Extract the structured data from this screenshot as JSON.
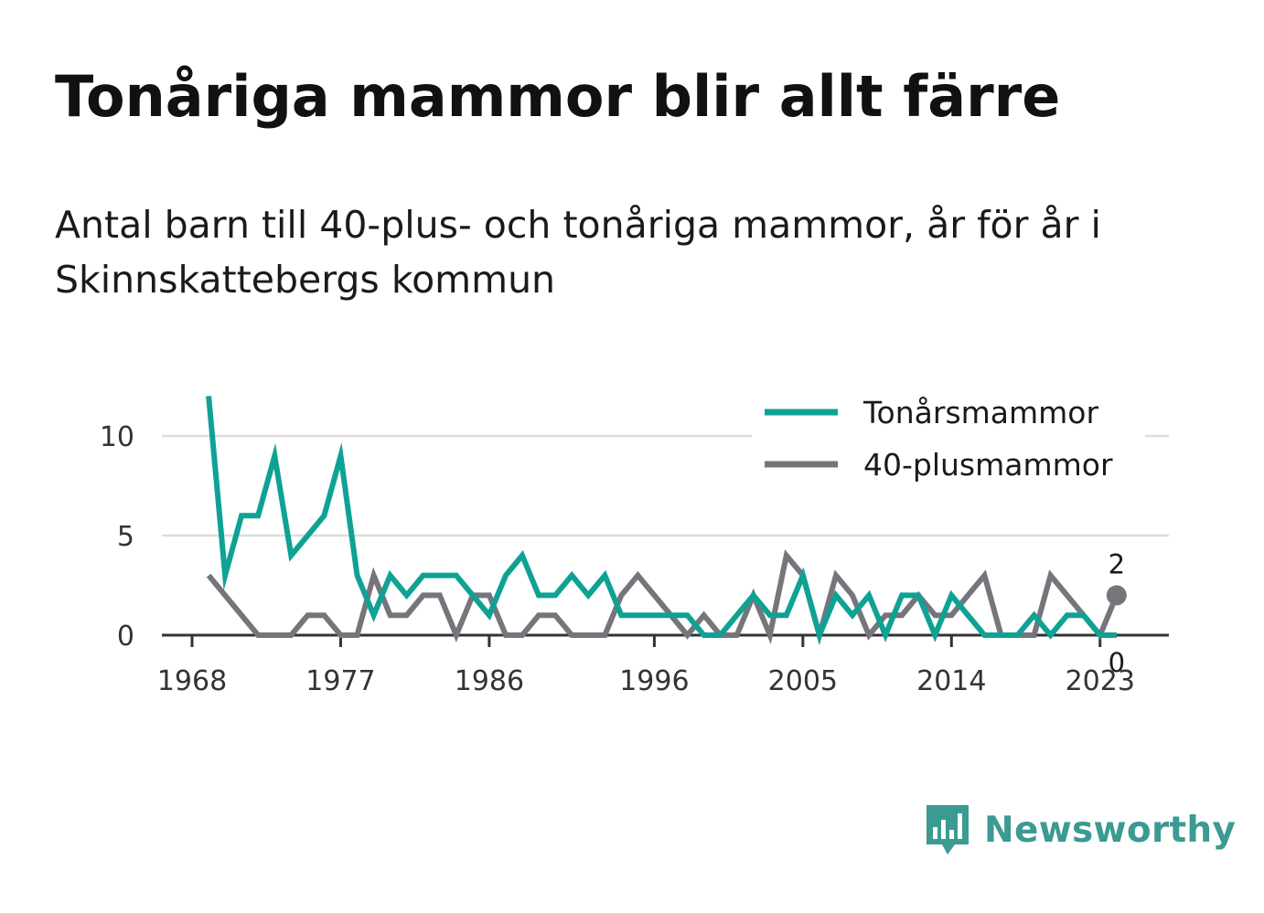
{
  "title": "Tonåriga mammor blir allt färre",
  "subtitle": "Antal barn till 40-plus- och tonåriga mammor, år för år i Skinnskattebergs kommun",
  "brand": {
    "name": "Newsworthy",
    "icon": "newsworthy-bar-chart-icon",
    "color": "#3b9a91"
  },
  "chart_data": {
    "type": "line",
    "x_ticks": [
      "1968",
      "1977",
      "1986",
      "1996",
      "2005",
      "2014",
      "2023"
    ],
    "y_ticks": [
      "0",
      "5",
      "10"
    ],
    "ylim": [
      0,
      12
    ],
    "xlim": [
      1967,
      2026
    ],
    "grid": "horizontal",
    "legend_position": "top-right",
    "series": [
      {
        "name": "Tonårsmammor",
        "color": "#0ea294",
        "x": [
          1969,
          1970,
          1971,
          1972,
          1973,
          1974,
          1975,
          1976,
          1977,
          1978,
          1979,
          1980,
          1981,
          1982,
          1983,
          1984,
          1985,
          1986,
          1987,
          1988,
          1989,
          1990,
          1991,
          1992,
          1993,
          1994,
          1995,
          1996,
          1997,
          1998,
          1999,
          2000,
          2001,
          2002,
          2003,
          2004,
          2005,
          2006,
          2007,
          2008,
          2009,
          2010,
          2011,
          2012,
          2013,
          2014,
          2015,
          2016,
          2017,
          2018,
          2019,
          2020,
          2021,
          2022,
          2023,
          2024
        ],
        "values": [
          12,
          3,
          6,
          6,
          9,
          4,
          5,
          6,
          9,
          3,
          1,
          3,
          2,
          3,
          3,
          3,
          2,
          1,
          3,
          4,
          2,
          2,
          3,
          2,
          3,
          1,
          1,
          1,
          1,
          1,
          0,
          0,
          1,
          2,
          1,
          1,
          3,
          0,
          2,
          1,
          2,
          0,
          2,
          2,
          0,
          2,
          1,
          0,
          0,
          0,
          1,
          0,
          1,
          1,
          0,
          0
        ],
        "end_label": "0"
      },
      {
        "name": "40-plusmammor",
        "color": "#76757b",
        "x": [
          1969,
          1970,
          1971,
          1972,
          1973,
          1974,
          1975,
          1976,
          1977,
          1978,
          1979,
          1980,
          1981,
          1982,
          1983,
          1984,
          1985,
          1986,
          1987,
          1988,
          1989,
          1990,
          1991,
          1992,
          1993,
          1994,
          1995,
          1996,
          1997,
          1998,
          1999,
          2000,
          2001,
          2002,
          2003,
          2004,
          2005,
          2006,
          2007,
          2008,
          2009,
          2010,
          2011,
          2012,
          2013,
          2014,
          2015,
          2016,
          2017,
          2018,
          2019,
          2020,
          2021,
          2022,
          2023,
          2024
        ],
        "values": [
          3,
          2,
          1,
          0,
          0,
          0,
          1,
          1,
          0,
          0,
          3,
          1,
          1,
          2,
          2,
          0,
          2,
          2,
          0,
          0,
          1,
          1,
          0,
          0,
          0,
          2,
          3,
          2,
          1,
          0,
          1,
          0,
          0,
          2,
          0,
          4,
          3,
          0,
          3,
          2,
          0,
          1,
          1,
          2,
          1,
          1,
          2,
          3,
          0,
          0,
          0,
          3,
          2,
          1,
          0,
          2
        ],
        "end_label": "2"
      }
    ]
  }
}
